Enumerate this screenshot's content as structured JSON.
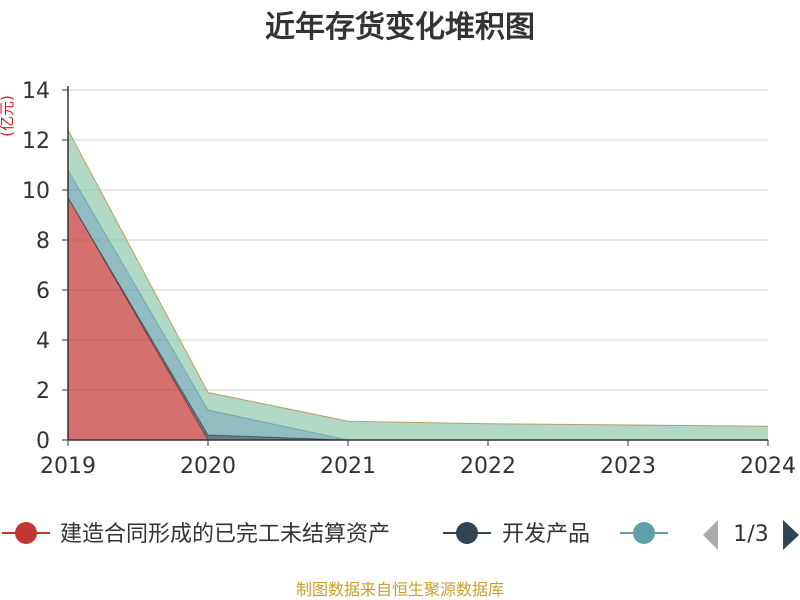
{
  "chart_data": {
    "type": "area",
    "stacked": true,
    "title": "近年存货变化堆积图",
    "ylabel": "(亿元)",
    "categories": [
      "2019",
      "2020",
      "2021",
      "2022",
      "2023",
      "2024"
    ],
    "ylim": [
      0,
      14
    ],
    "yticks": [
      "0",
      "2",
      "4",
      "6",
      "8",
      "10",
      "12",
      "14"
    ],
    "grid": true,
    "series": [
      {
        "name": "建造合同形成的已完工未结算资产",
        "color": "#c23531",
        "values": [
          9.7,
          0.0,
          0.0,
          0.0,
          0.0,
          0.0
        ]
      },
      {
        "name": "开发产品",
        "color": "#2f4554",
        "values": [
          0.0,
          0.2,
          0.0,
          0.0,
          0.0,
          0.0
        ]
      },
      {
        "name": "",
        "color": "#61a0a8",
        "values": [
          1.1,
          1.0,
          0.0,
          0.0,
          0.0,
          0.0
        ]
      },
      {
        "name": "",
        "color": "#91c7ae",
        "values": [
          1.6,
          0.7,
          0.75,
          0.65,
          0.6,
          0.55
        ]
      }
    ]
  },
  "legend": {
    "items": [
      {
        "label": "建造合同形成的已完工未结算资产",
        "color": "#c23531"
      },
      {
        "label": "开发产品",
        "color": "#2f4554"
      },
      {
        "label": "",
        "color": "#61a0a8"
      }
    ],
    "page_indicator": "1/3"
  },
  "source": "制图数据来自恒生聚源数据库"
}
